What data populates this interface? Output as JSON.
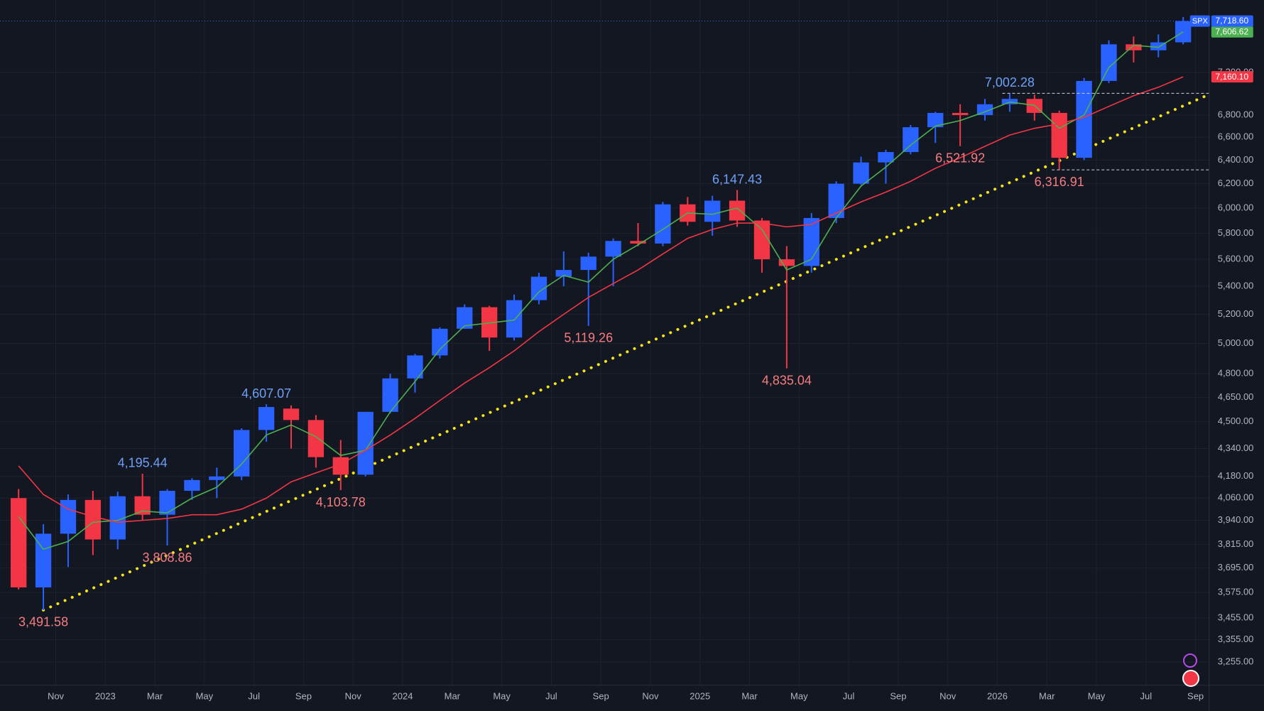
{
  "chart_data": {
    "type": "candlestick",
    "symbol": "SPX",
    "categories": [
      null,
      null,
      null,
      null,
      null,
      null,
      null,
      null,
      null,
      null,
      null,
      null,
      null,
      null,
      null,
      null,
      null,
      null,
      null,
      null,
      null,
      null,
      null,
      null,
      null,
      null,
      null,
      null,
      null,
      null,
      null,
      null,
      null,
      null,
      null,
      null,
      null,
      null,
      null,
      null,
      null,
      null,
      null,
      null,
      null,
      null,
      null,
      null
    ],
    "open": [
      4060,
      3600,
      3870,
      4050,
      3840,
      4070,
      3970,
      4100,
      4160,
      4180,
      4450,
      4580,
      4510,
      4290,
      4190,
      4560,
      4770,
      4920,
      5100,
      5250,
      5040,
      5300,
      5470,
      5520,
      5620,
      5740,
      5720,
      6030,
      5890,
      6060,
      5900,
      5600,
      5550,
      5920,
      6200,
      6380,
      6470,
      6690,
      6820,
      6800,
      6900,
      6950,
      6820,
      6420,
      7120,
      7480,
      7420,
      7500
    ],
    "high": [
      4110,
      3920,
      4080,
      4100,
      4095,
      4195.44,
      4110,
      4170,
      4230,
      4460,
      4607.07,
      4600,
      4540,
      4390,
      4560,
      4800,
      4930,
      5110,
      5270,
      5260,
      5340,
      5500,
      5660,
      5650,
      5760,
      5880,
      6050,
      6090,
      6100,
      6147.43,
      5920,
      5700,
      5960,
      6220,
      6430,
      6490,
      6710,
      6830,
      6900,
      6950,
      7002.28,
      6990,
      6840,
      7150,
      7520,
      7560,
      7580,
      7760
    ],
    "low": [
      3590,
      3491.58,
      3700,
      3760,
      3790,
      3940,
      3808.86,
      4050,
      4060,
      4160,
      4380,
      4340,
      4230,
      4103.78,
      4180,
      4550,
      4680,
      4900,
      5100,
      4950,
      5020,
      5270,
      5400,
      5119.26,
      5400,
      5700,
      5700,
      5860,
      5780,
      5850,
      5500,
      4835.04,
      5500,
      5880,
      6190,
      6200,
      6450,
      6550,
      6521.92,
      6750,
      6830,
      6750,
      6316.91,
      6400,
      7100,
      7300,
      7350,
      7480
    ],
    "close": [
      3600,
      3870,
      4050,
      3840,
      4070,
      3970,
      4100,
      4160,
      4180,
      4450,
      4590,
      4510,
      4290,
      4190,
      4560,
      4770,
      4920,
      5100,
      5250,
      5040,
      5300,
      5470,
      5520,
      5620,
      5740,
      5720,
      6030,
      5890,
      6060,
      5900,
      5600,
      5550,
      5920,
      6200,
      6380,
      6470,
      6690,
      6820,
      6800,
      6900,
      6950,
      6820,
      6420,
      7120,
      7480,
      7420,
      7500,
      7718.6
    ],
    "last_label": "7,718.60",
    "up_color": "#2962ff",
    "down_color": "#f23645",
    "log_scale": true,
    "grid": true,
    "series": [
      {
        "color": "#4caf50",
        "value_label": "7,606.62",
        "values": [
          3960,
          3790,
          3830,
          3930,
          3940,
          3990,
          3980,
          4060,
          4120,
          4250,
          4420,
          4480,
          4410,
          4300,
          4330,
          4560,
          4750,
          4960,
          5120,
          5140,
          5160,
          5360,
          5480,
          5430,
          5600,
          5710,
          5830,
          5960,
          5950,
          6000,
          5830,
          5520,
          5600,
          5920,
          6180,
          6340,
          6530,
          6700,
          6750,
          6830,
          6920,
          6890,
          6680,
          6800,
          7250,
          7470,
          7450,
          7606.62
        ]
      },
      {
        "color": "#f23645",
        "value_label": "7,160.10",
        "values": [
          4240,
          4080,
          4000,
          3960,
          3930,
          3940,
          3950,
          3970,
          3970,
          4000,
          4060,
          4150,
          4200,
          4250,
          4330,
          4420,
          4520,
          4630,
          4740,
          4840,
          4950,
          5080,
          5200,
          5320,
          5420,
          5520,
          5640,
          5760,
          5830,
          5880,
          5880,
          5850,
          5870,
          5960,
          6050,
          6130,
          6220,
          6330,
          6420,
          6520,
          6620,
          6680,
          6720,
          6780,
          6880,
          6980,
          7060,
          7160.1
        ]
      }
    ],
    "trendline": {
      "x": [
        1,
        48
      ],
      "values": [
        3491.58,
        6987
      ],
      "color": "#f5e616"
    },
    "annotations": [
      {
        "label": "3,491.58",
        "value": 3491.58,
        "at": "low"
      },
      {
        "label": "4,195.44",
        "value": 4195.44,
        "at": "high"
      },
      {
        "label": "3,808.86",
        "value": 3808.86,
        "at": "low"
      },
      {
        "label": "4,607.07",
        "value": 4607.07,
        "at": "high"
      },
      {
        "label": "4,103.78",
        "value": 4103.78,
        "at": "low"
      },
      {
        "label": "5,119.26",
        "value": 5119.26,
        "at": "low"
      },
      {
        "label": "6,147.43",
        "value": 6147.43,
        "at": "high"
      },
      {
        "label": "4,835.04",
        "value": 4835.04,
        "at": "low"
      },
      {
        "label": "6,521.92",
        "value": 6521.92,
        "at": "low"
      },
      {
        "label": "7,002.28",
        "value": 7002.28,
        "at": "high",
        "dashed": true
      },
      {
        "label": "6,316.91",
        "value": 6316.91,
        "at": "low",
        "dashed": true
      }
    ],
    "xlim": [
      -0.75,
      48.05
    ],
    "xticks": [
      {
        "value": 2,
        "label": "Nov"
      },
      {
        "value": 4,
        "label": "2023"
      },
      {
        "value": 6,
        "label": "Mar"
      },
      {
        "value": 8,
        "label": "May"
      },
      {
        "value": 10,
        "label": "Jul"
      },
      {
        "value": 12,
        "label": "Sep"
      },
      {
        "value": 14,
        "label": "Nov"
      },
      {
        "value": 16,
        "label": "2024"
      },
      {
        "value": 18,
        "label": "Mar"
      },
      {
        "value": 20,
        "label": "May"
      },
      {
        "value": 22,
        "label": "Jul"
      },
      {
        "value": 24,
        "label": "Sep"
      },
      {
        "value": 26,
        "label": "Nov"
      },
      {
        "value": 28,
        "label": "2025"
      },
      {
        "value": 30,
        "label": "Mar"
      },
      {
        "value": 32,
        "label": "May"
      },
      {
        "value": 34,
        "label": "Jul"
      },
      {
        "value": 36,
        "label": "Sep"
      },
      {
        "value": 38,
        "label": "Nov"
      },
      {
        "value": 40,
        "label": "2026"
      },
      {
        "value": 42,
        "label": "Mar"
      },
      {
        "value": 44,
        "label": "May"
      },
      {
        "value": 46,
        "label": "Jul"
      },
      {
        "value": 48,
        "label": "Sep"
      }
    ],
    "ylim": [
      3155,
      7940
    ],
    "yticks": [
      {
        "value": 3255,
        "label": "3,255.00"
      },
      {
        "value": 3355,
        "label": "3,355.00"
      },
      {
        "value": 3455,
        "label": "3,455.00"
      },
      {
        "value": 3575,
        "label": "3,575.00"
      },
      {
        "value": 3695,
        "label": "3,695.00"
      },
      {
        "value": 3815,
        "label": "3,815.00"
      },
      {
        "value": 3940,
        "label": "3,940.00"
      },
      {
        "value": 4060,
        "label": "4,060.00"
      },
      {
        "value": 4180,
        "label": "4,180.00"
      },
      {
        "value": 4340,
        "label": "4,340.00"
      },
      {
        "value": 4500,
        "label": "4,500.00"
      },
      {
        "value": 4650,
        "label": "4,650.00"
      },
      {
        "value": 4800,
        "label": "4,800.00"
      },
      {
        "value": 5000,
        "label": "5,000.00"
      },
      {
        "value": 5200,
        "label": "5,200.00"
      },
      {
        "value": 5400,
        "label": "5,400.00"
      },
      {
        "value": 5600,
        "label": "5,600.00"
      },
      {
        "value": 5800,
        "label": "5,800.00"
      },
      {
        "value": 6000,
        "label": "6,000.00"
      },
      {
        "value": 6200,
        "label": "6,200.00"
      },
      {
        "value": 6400,
        "label": "6,400.00"
      },
      {
        "value": 6600,
        "label": "6,600.00"
      },
      {
        "value": 6800,
        "label": "6,800.00"
      },
      {
        "value": 7200,
        "label": "7,200.00"
      }
    ]
  }
}
